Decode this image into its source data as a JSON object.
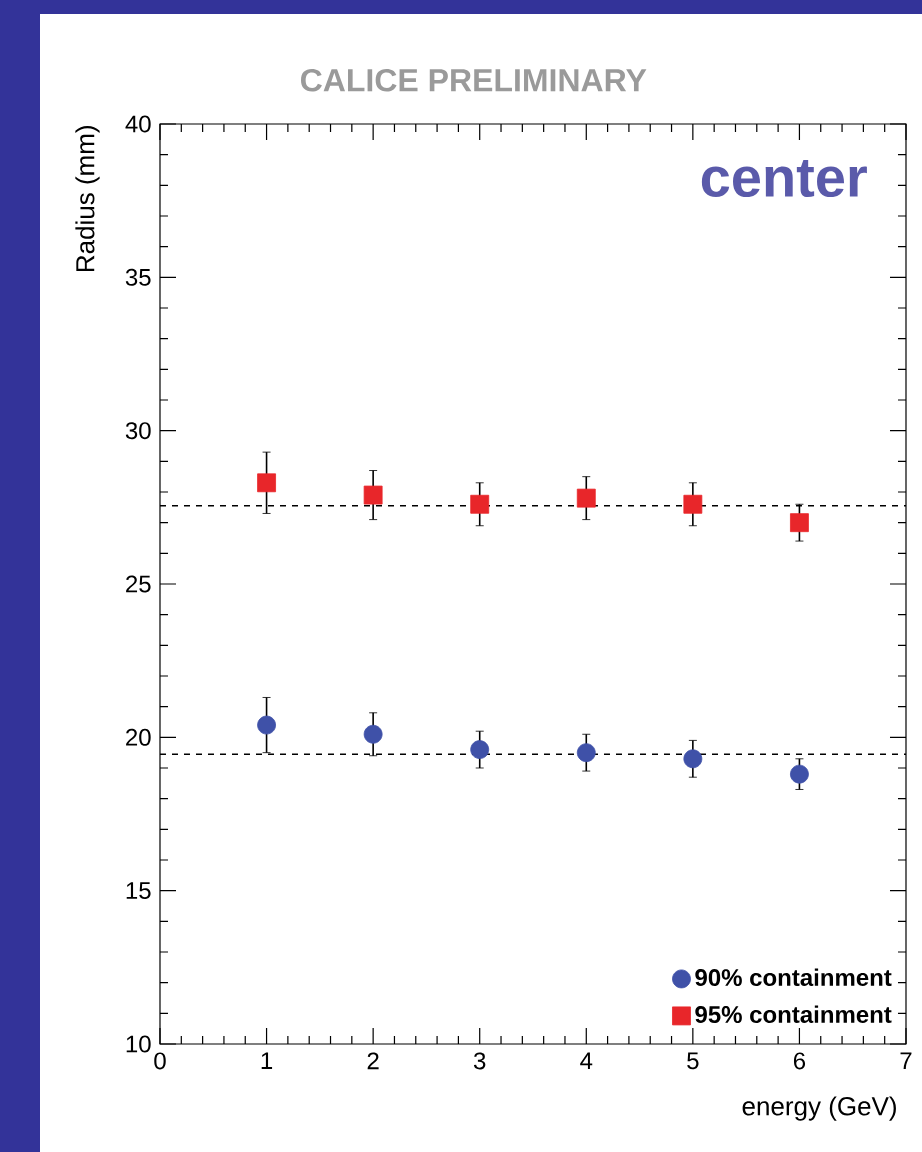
{
  "chart_data": {
    "type": "scatter",
    "title": "CALICE PRELIMINARY",
    "xlabel": "energy (GeV)",
    "ylabel": "Radius (mm)",
    "annotations": [
      "center"
    ],
    "x": [
      1,
      2,
      3,
      4,
      5,
      6
    ],
    "series": [
      {
        "name": "90% containment",
        "color": "#3f51a8",
        "marker": "circle",
        "values": [
          20.4,
          20.1,
          19.6,
          19.5,
          19.3,
          18.8
        ],
        "errors": [
          0.9,
          0.7,
          0.6,
          0.6,
          0.6,
          0.5
        ]
      },
      {
        "name": "95% containment",
        "color": "#e8262a",
        "marker": "square",
        "values": [
          28.3,
          27.9,
          27.6,
          27.8,
          27.6,
          27.0
        ],
        "errors": [
          1.0,
          0.8,
          0.7,
          0.7,
          0.7,
          0.6
        ]
      }
    ],
    "ref_lines": [
      {
        "axis": "y",
        "value": 27.55,
        "line_style": "dashed",
        "color": "#000000"
      },
      {
        "axis": "y",
        "value": 19.45,
        "line_style": "dashed",
        "color": "#000000"
      }
    ],
    "xlim": [
      0,
      7
    ],
    "ylim": [
      10,
      40
    ],
    "xticks": [
      0,
      1,
      2,
      3,
      4,
      5,
      6,
      7
    ],
    "yticks": [
      10,
      15,
      20,
      25,
      30,
      35,
      40
    ],
    "legend": "bottom right",
    "grid": false
  }
}
